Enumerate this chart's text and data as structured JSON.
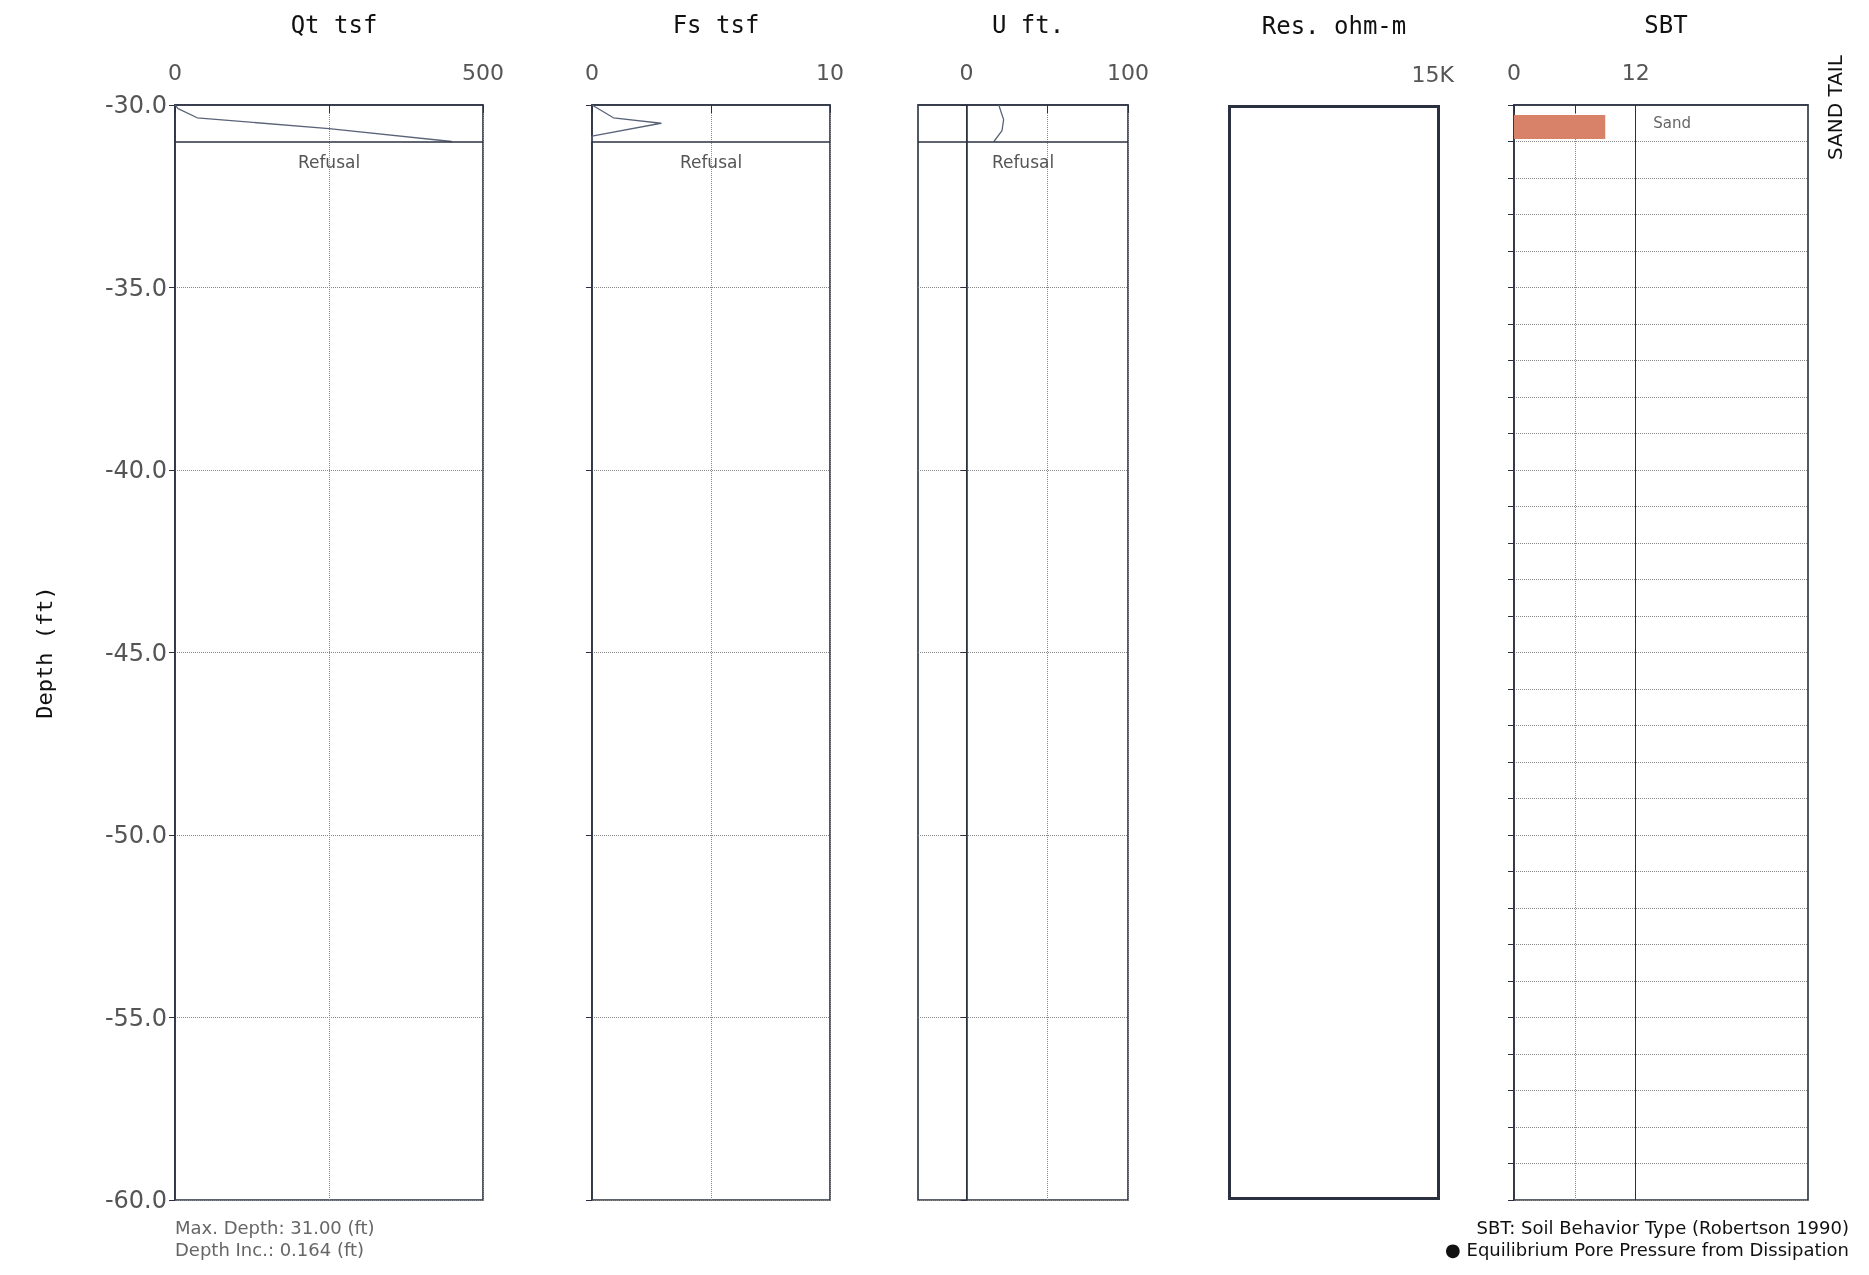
{
  "chart_data": [
    {
      "type": "line",
      "title": "Qt tsf",
      "ylabel": "Depth (ft)",
      "color": "#5a6478",
      "x": [
        0,
        5,
        36,
        250,
        449
      ],
      "values": [
        -30,
        -30.1,
        -30.35,
        -30.65,
        -31
      ],
      "xlim": [
        0,
        500
      ],
      "xticks": [
        0,
        {
          "value": 250,
          "label": null
        },
        500
      ],
      "ylim": [
        -60,
        -30
      ],
      "yticks": [
        {
          "value": -30,
          "label": "-30.0"
        },
        {
          "value": -35,
          "label": "-35.0"
        },
        {
          "value": -40,
          "label": "-40.0"
        },
        {
          "value": -45,
          "label": "-45.0"
        },
        {
          "value": -50,
          "label": "-50.0"
        },
        {
          "value": -55,
          "label": "-55.0"
        },
        {
          "value": -60,
          "label": "-60.0"
        }
      ],
      "grid": true,
      "marker": "none",
      "ref_lines": [
        {
          "axis": "y",
          "value": -31,
          "label": "Refusal"
        }
      ],
      "annotations": [
        "Max. Depth: 31.00 (ft)",
        "Depth Inc.: 0.164 (ft)"
      ]
    },
    {
      "type": "line",
      "title": "Fs tsf",
      "color": "#5a6478",
      "x": [
        0,
        0.9,
        2.9,
        0,
        0
      ],
      "values": [
        -30,
        -30.35,
        -30.5,
        -30.85,
        -31
      ],
      "xlim": [
        0,
        10
      ],
      "xticks": [
        0,
        {
          "value": 5,
          "label": null
        },
        10
      ],
      "ylim": [
        -60,
        -30
      ],
      "yticks": [
        -30,
        -35,
        -40,
        -45,
        -50,
        -55,
        -60
      ],
      "tick_labels": "x",
      "grid": true,
      "marker": "none",
      "ref_lines": [
        {
          "axis": "y",
          "value": -31,
          "label": "Refusal"
        }
      ]
    },
    {
      "type": "line",
      "title": "U ft.",
      "color": "#5a6478",
      "x": [
        20,
        23,
        22,
        17
      ],
      "values": [
        -30,
        -30.4,
        -30.7,
        -31
      ],
      "xlim": [
        -30,
        100
      ],
      "xticks": [
        0,
        {
          "value": 50,
          "label": null
        },
        100
      ],
      "ylim": [
        -60,
        -30
      ],
      "yticks": [
        -30,
        -35,
        -40,
        -45,
        -50,
        -55,
        -60
      ],
      "tick_labels": "x",
      "grid": true,
      "marker": "none",
      "ref_lines": [
        {
          "axis": "y",
          "value": -31,
          "label": "Refusal"
        },
        {
          "axis": "x",
          "value": 0
        }
      ]
    },
    {
      "type": "other",
      "title": "Res. ohm-m",
      "annotations": [
        "15K"
      ]
    },
    {
      "type": "bar",
      "orientation": "horizontal",
      "title": "SBT",
      "color": "#d9826a",
      "x": [
        -30.6
      ],
      "values": [
        9
      ],
      "value_labels": [
        "Sand"
      ],
      "xlim": [
        0,
        29
      ],
      "xticks": [
        0,
        {
          "value": 6,
          "label": null
        },
        12
      ],
      "ylim": [
        -60,
        -30
      ],
      "yticks": [
        -30,
        -31,
        -32,
        -33,
        -34,
        -35,
        -36,
        -37,
        -38,
        -39,
        -40,
        -41,
        -42,
        -43,
        -44,
        -45,
        -46,
        -47,
        -48,
        -49,
        -50,
        -51,
        -52,
        -53,
        -54,
        -55,
        -56,
        -57,
        -58,
        -59,
        -60
      ],
      "tick_labels": "x",
      "grid": true,
      "ref_lines": [
        {
          "axis": "x",
          "value": 12
        }
      ],
      "annotations": [
        "SBT: Soil Behavior Type (Robertson 1990)",
        "● Equilibrium Pore Pressure from Dissipation",
        "SAND TAIL"
      ]
    }
  ]
}
